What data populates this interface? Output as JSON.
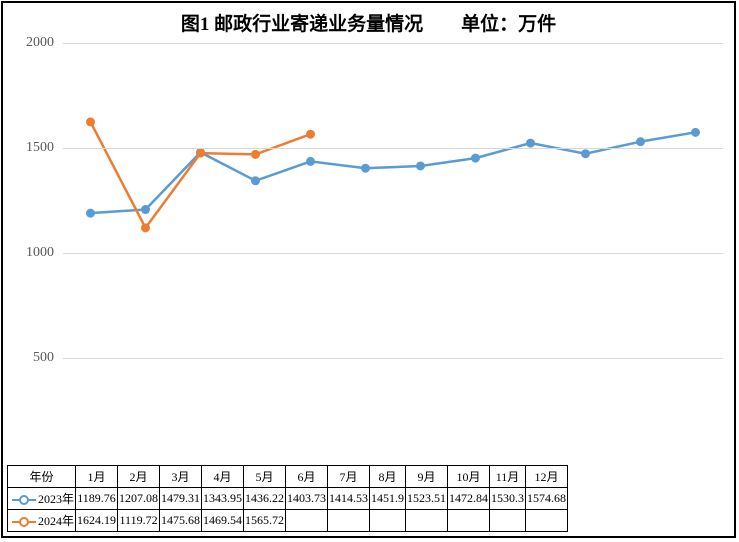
{
  "title": "图1 邮政行业寄递业务量情况　　单位：万件",
  "chart": {
    "type": "line",
    "ylim": [
      0,
      2000
    ],
    "yticks": [
      500,
      1000,
      1500,
      2000
    ],
    "categories": [
      "1月",
      "2月",
      "3月",
      "4月",
      "5月",
      "6月",
      "7月",
      "8月",
      "9月",
      "10月",
      "11月",
      "12月"
    ],
    "series": [
      {
        "name": "2023年",
        "color": "#5b9bd5",
        "values": [
          1189.76,
          1207.08,
          1479.31,
          1343.95,
          1436.22,
          1403.73,
          1414.53,
          1451.9,
          1523.51,
          1472.84,
          1530.3,
          1574.68
        ]
      },
      {
        "name": "2024年",
        "color": "#ed7d31",
        "values": [
          1624.19,
          1119.72,
          1475.68,
          1469.54,
          1565.72
        ]
      }
    ],
    "line_width": 2.5,
    "marker_radius": 4,
    "grid_color": "#d9d9d9",
    "background_color": "#ffffff",
    "axis_label_color": "#595959",
    "title_fontsize": 19,
    "table_fontsize": 12,
    "axis_fontsize": 14
  },
  "table_header": "年份"
}
